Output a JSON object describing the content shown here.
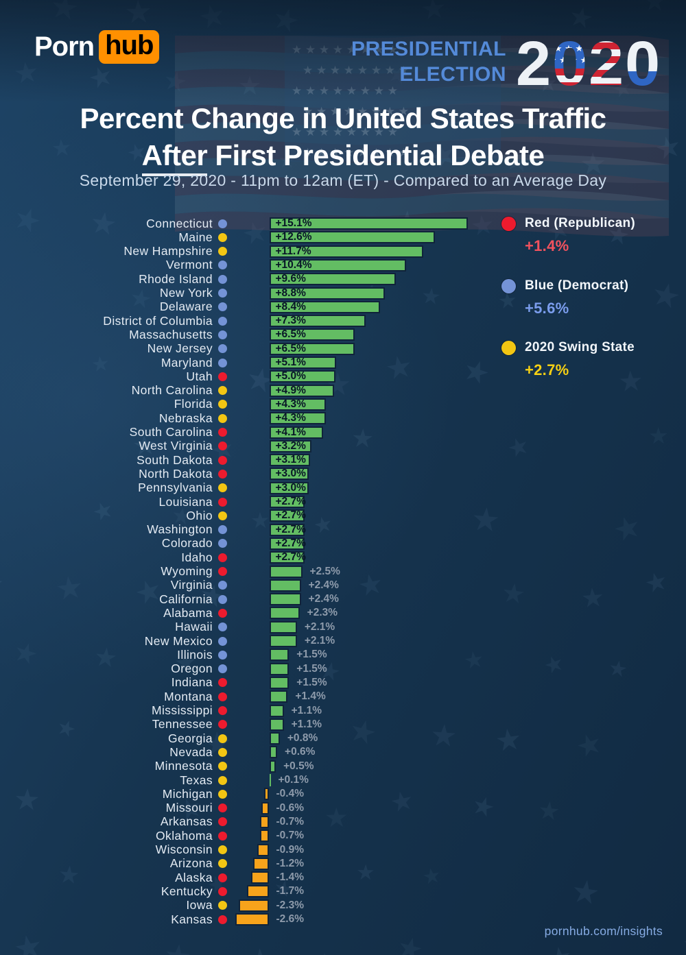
{
  "header": {
    "logo": {
      "porn": "Porn",
      "hub": "hub"
    },
    "election": {
      "line1": "PRESIDENTIAL",
      "line2": "ELECTION",
      "year": "2020"
    }
  },
  "title": {
    "line1": "Percent Change in United States Traffic",
    "line2_underlined": "After",
    "line2_rest": " First Presidential Debate"
  },
  "subtitle": "September 29, 2020 - 11pm to 12am (ET) - Compared to an Average Day",
  "legend": [
    {
      "label": "Red (Republican)",
      "value": "+1.4%",
      "dot_color": "#ed1b2e",
      "value_color": "#f2525e"
    },
    {
      "label": "Blue (Democrat)",
      "value": "+5.6%",
      "dot_color": "#7493d6",
      "value_color": "#7b9ded"
    },
    {
      "label": "2020 Swing State",
      "value": "+2.7%",
      "dot_color": "#f3c613",
      "value_color": "#f6d014"
    }
  ],
  "footer": {
    "link": "pornhub.com/insights"
  },
  "chart_data": {
    "type": "bar",
    "orientation": "horizontal",
    "title": "Percent Change in United States Traffic After First Presidential Debate",
    "subtitle": "September 29, 2020 - 11pm to 12am (ET) - Compared to an Average Day",
    "unit": "%",
    "xlim": [
      -2.6,
      15.1
    ],
    "grid": false,
    "positive_color": "#63bd63",
    "negative_color": "#f7a31b",
    "party_colors": {
      "red": "#ed1b2e",
      "blue": "#7493d6",
      "swing": "#f3c613"
    },
    "averages": {
      "red": 1.4,
      "blue": 5.6,
      "swing": 2.7
    },
    "categories": [
      "Connecticut",
      "Maine",
      "New Hampshire",
      "Vermont",
      "Rhode Island",
      "New York",
      "Delaware",
      "District of Columbia",
      "Massachusetts",
      "New Jersey",
      "Maryland",
      "Utah",
      "North Carolina",
      "Florida",
      "Nebraska",
      "South Carolina",
      "West Virginia",
      "South Dakota",
      "North Dakota",
      "Pennsylvania",
      "Louisiana",
      "Ohio",
      "Washington",
      "Colorado",
      "Idaho",
      "Wyoming",
      "Virginia",
      "California",
      "Alabama",
      "Hawaii",
      "New Mexico",
      "Illinois",
      "Oregon",
      "Indiana",
      "Montana",
      "Mississippi",
      "Tennessee",
      "Georgia",
      "Nevada",
      "Minnesota",
      "Texas",
      "Michigan",
      "Missouri",
      "Arkansas",
      "Oklahoma",
      "Wisconsin",
      "Arizona",
      "Alaska",
      "Kentucky",
      "Iowa",
      "Kansas"
    ],
    "party": [
      "blue",
      "swing",
      "swing",
      "blue",
      "blue",
      "blue",
      "blue",
      "blue",
      "blue",
      "blue",
      "blue",
      "red",
      "swing",
      "swing",
      "swing",
      "red",
      "red",
      "red",
      "red",
      "swing",
      "red",
      "swing",
      "blue",
      "blue",
      "red",
      "red",
      "blue",
      "blue",
      "red",
      "blue",
      "blue",
      "blue",
      "blue",
      "red",
      "red",
      "red",
      "red",
      "swing",
      "swing",
      "swing",
      "swing",
      "swing",
      "red",
      "red",
      "red",
      "swing",
      "swing",
      "red",
      "red",
      "swing",
      "red"
    ],
    "values": [
      15.1,
      12.6,
      11.7,
      10.4,
      9.6,
      8.8,
      8.4,
      7.3,
      6.5,
      6.5,
      5.1,
      5.0,
      4.9,
      4.3,
      4.3,
      4.1,
      3.2,
      3.1,
      3.0,
      3.0,
      2.7,
      2.7,
      2.7,
      2.7,
      2.7,
      2.5,
      2.4,
      2.4,
      2.3,
      2.1,
      2.1,
      1.5,
      1.5,
      1.5,
      1.4,
      1.1,
      1.1,
      0.8,
      0.6,
      0.5,
      0.1,
      -0.4,
      -0.6,
      -0.7,
      -0.7,
      -0.9,
      -1.2,
      -1.4,
      -1.7,
      -2.3,
      -2.6
    ],
    "labels": [
      "+15.1%",
      "+12.6%",
      "+11.7%",
      "+10.4%",
      "+9.6%",
      "+8.8%",
      "+8.4%",
      "+7.3%",
      "+6.5%",
      "+6.5%",
      "+5.1%",
      "+5.0%",
      "+4.9%",
      "+4.3%",
      "+4.3%",
      "+4.1%",
      "+3.2%",
      "+3.1%",
      "+3.0%",
      "+3.0%",
      "+2.7%",
      "+2.7%",
      "+2.7%",
      "+2.7%",
      "+2.7%",
      "+2.5%",
      "+2.4%",
      "+2.4%",
      "+2.3%",
      "+2.1%",
      "+2.1%",
      "+1.5%",
      "+1.5%",
      "+1.5%",
      "+1.4%",
      "+1.1%",
      "+1.1%",
      "+0.8%",
      "+0.6%",
      "+0.5%",
      "+0.1%",
      "-0.4%",
      "-0.6%",
      "-0.7%",
      "-0.7%",
      "-0.9%",
      "-1.2%",
      "-1.4%",
      "-1.7%",
      "-2.3%",
      "-2.6%"
    ]
  }
}
